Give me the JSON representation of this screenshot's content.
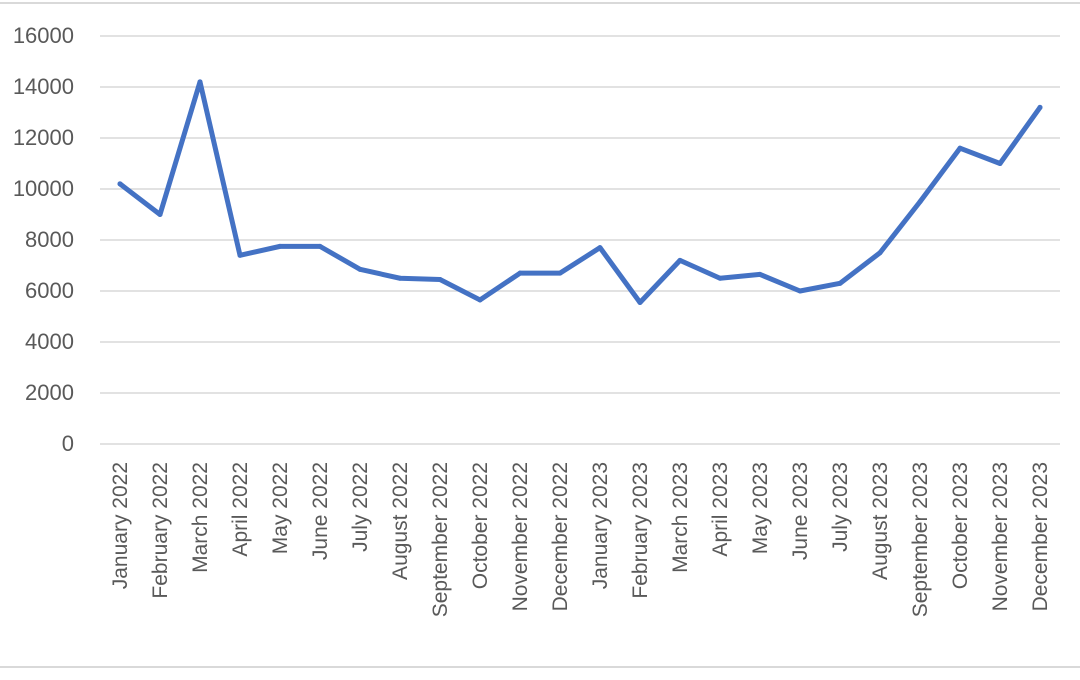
{
  "chart_data": {
    "type": "line",
    "title": "",
    "xlabel": "",
    "ylabel": "",
    "ylim": [
      0,
      16000
    ],
    "yticks": [
      0,
      2000,
      4000,
      6000,
      8000,
      10000,
      12000,
      14000,
      16000
    ],
    "grid": true,
    "legend": "none",
    "categories": [
      "January 2022",
      "February 2022",
      "March 2022",
      "April 2022",
      "May 2022",
      "June 2022",
      "July 2022",
      "August 2022",
      "September 2022",
      "October 2022",
      "November 2022",
      "December 2022",
      "January 2023",
      "February 2023",
      "March 2023",
      "April 2023",
      "May 2023",
      "June 2023",
      "July 2023",
      "August 2023",
      "September 2023",
      "October 2023",
      "November 2023",
      "December 2023"
    ],
    "series": [
      {
        "values": [
          10200,
          9000,
          14200,
          7400,
          7750,
          7750,
          6850,
          6500,
          6450,
          5650,
          6700,
          6700,
          7700,
          5550,
          7200,
          6500,
          6650,
          6000,
          6300,
          7500,
          9500,
          11600,
          11000,
          13200
        ],
        "color": "#4472c4"
      }
    ],
    "colors": {
      "line": "#4472c4",
      "grid": "#d9d9d9",
      "text": "#595959"
    }
  }
}
